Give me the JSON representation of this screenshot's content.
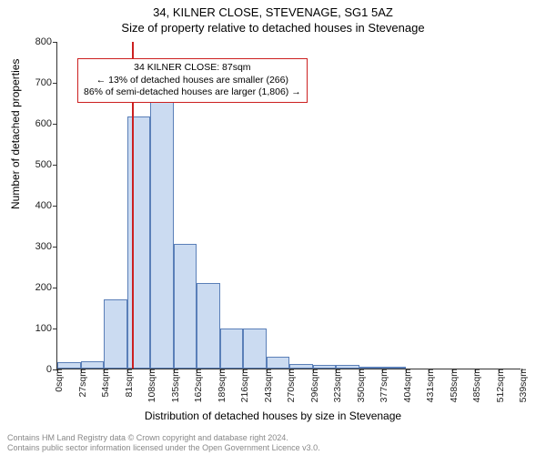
{
  "header": {
    "address": "34, KILNER CLOSE, STEVENAGE, SG1 5AZ",
    "subtitle": "Size of property relative to detached houses in Stevenage"
  },
  "chart": {
    "type": "histogram",
    "ylabel": "Number of detached properties",
    "xlabel": "Distribution of detached houses by size in Stevenage",
    "ylim": [
      0,
      800
    ],
    "ytick_step": 100,
    "xticks": [
      "0sqm",
      "27sqm",
      "54sqm",
      "81sqm",
      "108sqm",
      "135sqm",
      "162sqm",
      "189sqm",
      "216sqm",
      "243sqm",
      "270sqm",
      "296sqm",
      "323sqm",
      "350sqm",
      "377sqm",
      "404sqm",
      "431sqm",
      "458sqm",
      "485sqm",
      "512sqm",
      "539sqm"
    ],
    "bar_values": [
      15,
      18,
      170,
      615,
      655,
      305,
      210,
      98,
      98,
      30,
      12,
      8,
      8,
      2,
      5,
      0,
      0,
      0,
      0,
      0
    ],
    "bar_fill": "rgba(160,190,230,0.55)",
    "bar_border": "#5a7fb8",
    "background_color": "#ffffff",
    "axis_color": "#333333",
    "marker_line": {
      "x_sqm": 87,
      "color": "#cc2020"
    },
    "annotation": {
      "line1": "34 KILNER CLOSE: 87sqm",
      "line2": "← 13% of detached houses are smaller (266)",
      "line3": "86% of semi-detached houses are larger (1,806) →",
      "border_color": "#cc2020"
    }
  },
  "footer": {
    "line1": "Contains HM Land Registry data © Crown copyright and database right 2024.",
    "line2": "Contains public sector information licensed under the Open Government Licence v3.0."
  }
}
